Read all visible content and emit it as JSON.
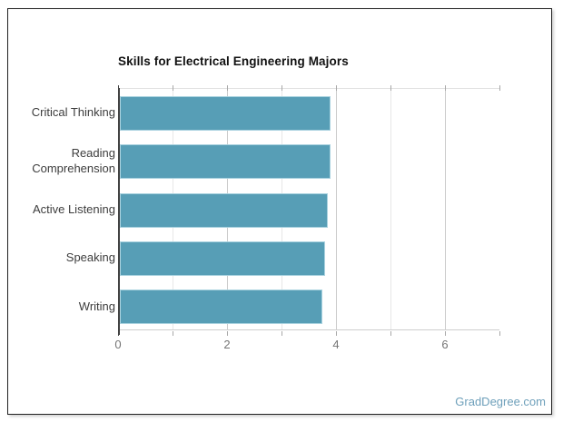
{
  "title": {
    "text": "Skills for Electrical Engineering Majors"
  },
  "watermark": {
    "text": "GradDegree.com",
    "color": "#6d9fba"
  },
  "colors": {
    "bar": "#579eb6",
    "bar_edge": "#a9d2df",
    "axis_spine": "#424242",
    "grid_major": "#cbcbcb",
    "grid_minor": "#e7e7e7",
    "axis_label": "#757575",
    "category_label": "#3d3d3d",
    "card_border": "#222222",
    "background": "#ffffff"
  },
  "chart_data": {
    "type": "bar",
    "orientation": "horizontal",
    "title": "Skills for Electrical Engineering Majors",
    "categories": [
      "Critical Thinking",
      "Reading Comprehension",
      "Active Listening",
      "Speaking",
      "Writing"
    ],
    "values": [
      3.9,
      3.9,
      3.85,
      3.8,
      3.75
    ],
    "xlabel": "",
    "ylabel": "",
    "xlim": [
      0,
      7
    ],
    "x_ticks": [
      0,
      2,
      4,
      6
    ],
    "x_tick_labels": [
      "0",
      "2",
      "4",
      "6"
    ],
    "minor_grid_ticks": [
      1,
      3,
      5
    ],
    "grid": true,
    "legend": "none",
    "bar_color": "#579eb6"
  }
}
